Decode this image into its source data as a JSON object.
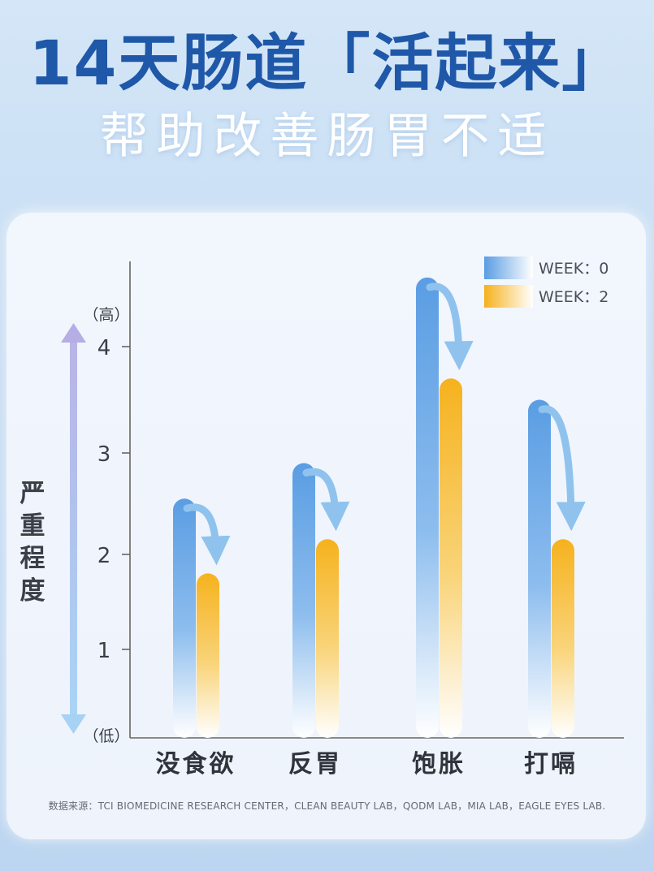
{
  "header": {
    "title": "14天肠道「活起来」",
    "subtitle": "帮助改善肠胃不适"
  },
  "footer": {
    "source": "数据来源：TCI BIOMEDICINE RESEARCH CENTER，CLEAN BEAUTY LAB，QODM LAB，MIA LAB，EAGLE EYES LAB."
  },
  "chart_data": {
    "type": "bar",
    "categories": [
      "没食欲",
      "反胃",
      "饱胀",
      "打嗝"
    ],
    "series": [
      {
        "name": "WEEK：0",
        "values": [
          2.55,
          2.9,
          4.65,
          3.5
        ],
        "color": "#5ea0e4"
      },
      {
        "name": "WEEK：2",
        "values": [
          1.8,
          2.15,
          3.7,
          2.15
        ],
        "color": "#f7b524"
      }
    ],
    "ylabel": "严重程度",
    "y_high_label": "（高）",
    "y_low_label": "（低）",
    "ylim": [
      0,
      4.7
    ],
    "yticks": [
      1,
      2,
      3,
      4
    ],
    "legend_position": "top-right",
    "grid": false
  }
}
